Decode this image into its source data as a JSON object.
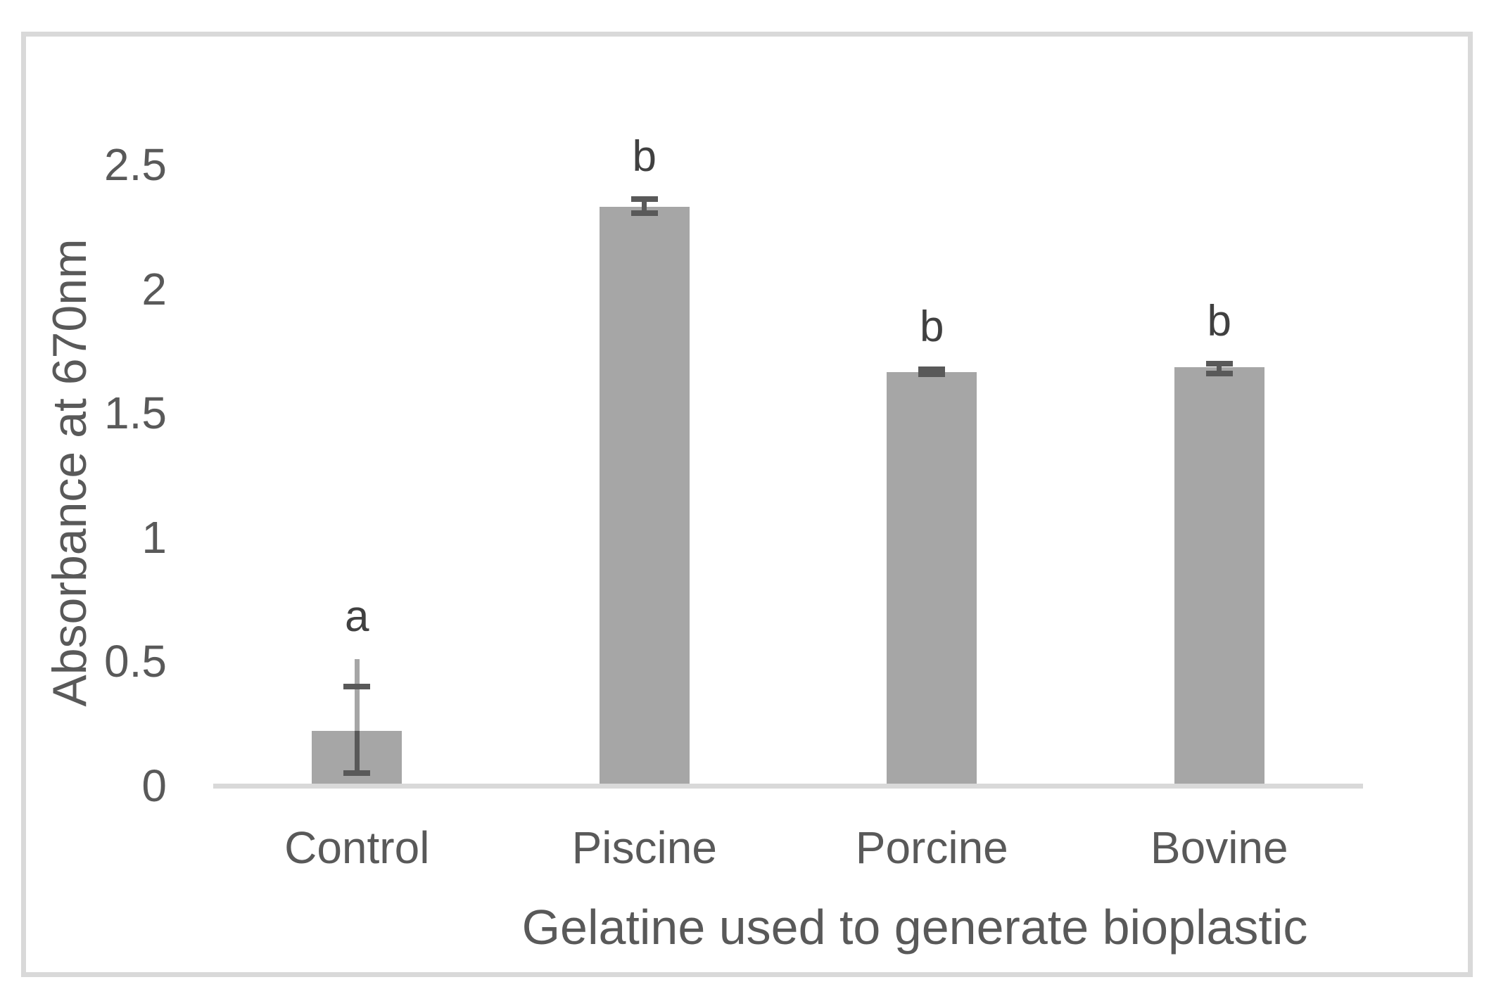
{
  "chart_data": {
    "type": "bar",
    "title": "",
    "xlabel": "Gelatine used to generate bioplastic",
    "ylabel": "Absorbance at 670nm",
    "categories": [
      "Control",
      "Piscine",
      "Porcine",
      "Bovine"
    ],
    "values": [
      0.22,
      2.33,
      1.665,
      1.685
    ],
    "error_top": [
      0.4,
      2.36,
      1.675,
      1.7
    ],
    "error_bottom": [
      0.05,
      2.305,
      1.655,
      1.66
    ],
    "extra_whisker_top": [
      0.51,
      null,
      null,
      null
    ],
    "sig_letters": [
      "a",
      "b",
      "b",
      "b"
    ],
    "ytick_values": [
      0,
      0.5,
      1,
      1.5,
      2,
      2.5
    ],
    "ytick_labels": [
      "0",
      "0.5",
      "1",
      "1.5",
      "2",
      "2.5"
    ],
    "ylim": [
      0,
      2.64
    ],
    "grid": false,
    "legend": false,
    "bar_color": "#a6a6a6",
    "error_bar_color": "#595959",
    "soft_whisker_color": "#a6a6a6",
    "axis_line_color": "#d9d9d9",
    "frame_color": "#d9d9d9",
    "tick_text_color": "#595959",
    "letter_text_color": "#404040"
  }
}
